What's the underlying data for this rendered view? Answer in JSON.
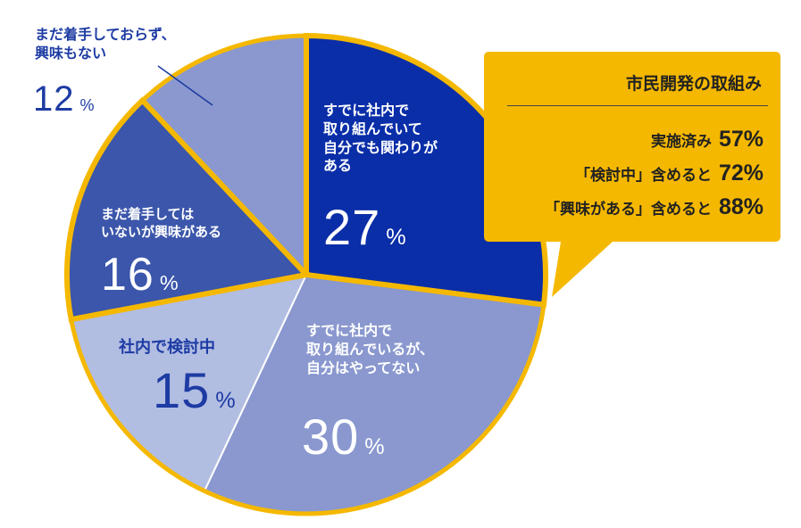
{
  "chart_data": {
    "type": "pie",
    "slices": [
      {
        "label": [
          "すでに社内で",
          "取り組んでいて",
          "自分でも関わりが",
          "ある"
        ],
        "value": 27,
        "color": "#0a2ea8",
        "highlighted": true
      },
      {
        "label": [
          "すでに社内で",
          "取り組んでいるが、",
          "自分はやってない"
        ],
        "value": 30,
        "color": "#8a98cf",
        "highlighted": false
      },
      {
        "label": [
          "社内で検討中"
        ],
        "value": 15,
        "color": "#b2bde2",
        "highlighted": false
      },
      {
        "label": [
          "まだ着手しては",
          "いないが興味がある"
        ],
        "value": 16,
        "color": "#3b56ab",
        "highlighted": true
      },
      {
        "label": [
          "まだ着手しておらず、",
          "興味もない"
        ],
        "value": 12,
        "color": "#8a98cf",
        "highlighted": false
      }
    ],
    "unit": "%",
    "colors": {
      "highlight_outline": "#f5b800",
      "outer_ring": "#f5b800",
      "callout_fill": "#f5b800"
    },
    "callout": {
      "title": "市民開発の取組み",
      "rows": [
        {
          "text": "実施済み",
          "value": "57%"
        },
        {
          "text": "「検討中」含めると",
          "value": "72%"
        },
        {
          "text": "「興味がある」含めると",
          "value": "88%"
        }
      ]
    }
  }
}
